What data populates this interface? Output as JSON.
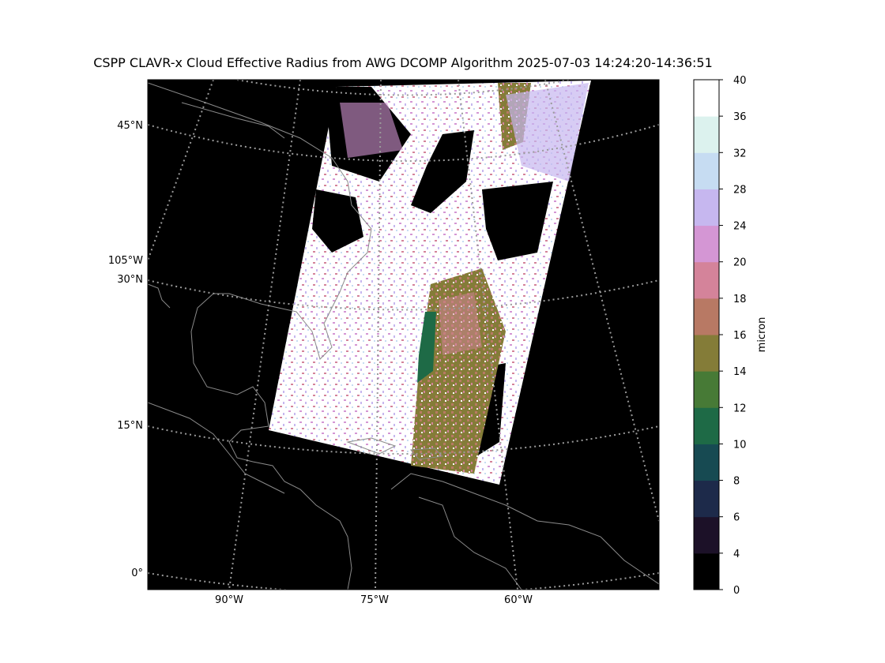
{
  "title": "CSPP CLAVR-x Cloud Effective Radius from AWG DCOMP Algorithm 2025-07-03 14:24:20-14:36:51",
  "map": {
    "background_color": "#000000",
    "coastline_color": "#8a8a8a",
    "gridline_color": "#9a9a9a",
    "lat_labels": [
      {
        "label": "45°N",
        "lat": 45
      },
      {
        "label": "30°N",
        "lat": 30
      },
      {
        "label": "15°N",
        "lat": 15
      },
      {
        "label": "0°",
        "lat": 0
      }
    ],
    "lon_labels": [
      {
        "label": "90°W",
        "lon": -90
      },
      {
        "label": "75°W",
        "lon": -75
      },
      {
        "label": "60°W",
        "lon": -60
      }
    ],
    "extra_lon_label": {
      "label": "105°W",
      "lon": -105
    }
  },
  "colorbar": {
    "label": "micron",
    "ticks": [
      "0",
      "4",
      "6",
      "8",
      "10",
      "12",
      "14",
      "16",
      "18",
      "20",
      "24",
      "28",
      "32",
      "36",
      "40"
    ],
    "colors": [
      "#000000",
      "#1c1128",
      "#1d2a4a",
      "#174a52",
      "#1e6a46",
      "#477a36",
      "#847c38",
      "#b87964",
      "#d4839a",
      "#d496d4",
      "#c6b7ef",
      "#c6dcf2",
      "#dcf2ee",
      "#ffffff"
    ]
  },
  "chart_data": {
    "type": "heatmap",
    "title": "CSPP CLAVR-x Cloud Effective Radius from AWG DCOMP Algorithm 2025-07-03 14:24:20-14:36:51",
    "colorbar_label": "micron",
    "colorbar_bounds": [
      0,
      4,
      6,
      8,
      10,
      12,
      14,
      16,
      18,
      20,
      24,
      28,
      32,
      36,
      40
    ],
    "latitudes_labeled": [
      45,
      30,
      15,
      0
    ],
    "longitudes_labeled": [
      -105,
      -90,
      -75,
      -60
    ]
  }
}
